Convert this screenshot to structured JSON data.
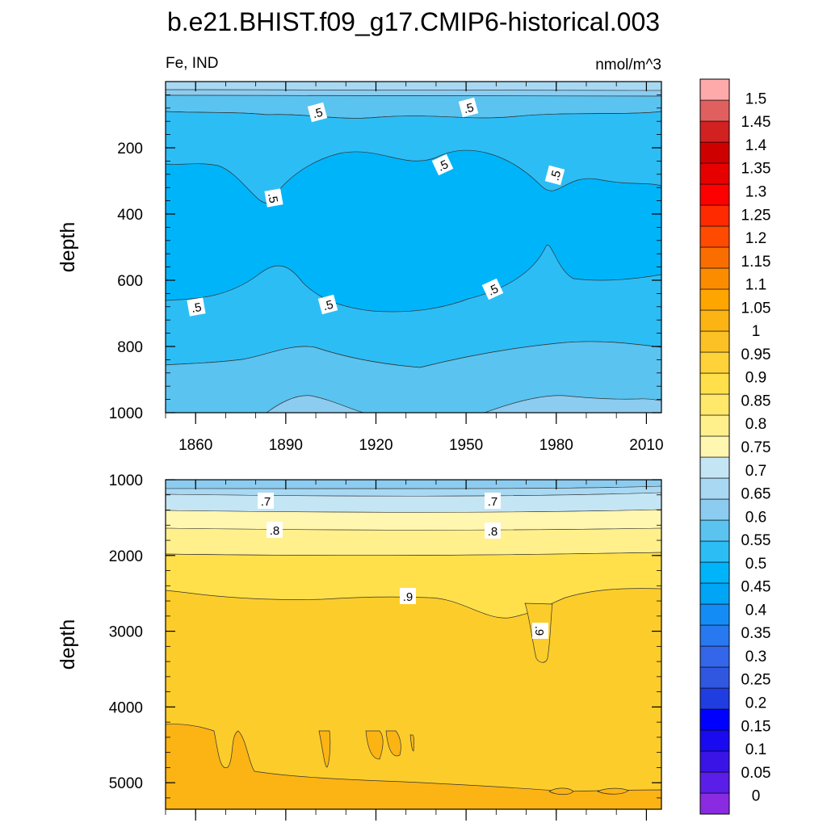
{
  "chart_data": {
    "type": "contour",
    "title": "b.e21.BHIST.f09_g17.CMIP6-historical.003",
    "variable_label": "Fe, IND",
    "units_label": "nmol/m^3",
    "colorbar": {
      "levels": [
        0,
        0.05,
        0.1,
        0.15,
        0.2,
        0.25,
        0.3,
        0.35,
        0.4,
        0.45,
        0.5,
        0.55,
        0.6,
        0.65,
        0.7,
        0.75,
        0.8,
        0.85,
        0.9,
        0.95,
        1,
        1.05,
        1.1,
        1.15,
        1.2,
        1.25,
        1.3,
        1.35,
        1.4,
        1.45,
        1.5
      ],
      "labels": [
        "0",
        "0.05",
        "0.1",
        "0.15",
        "0.2",
        "0.25",
        "0.3",
        "0.35",
        "0.4",
        "0.45",
        "0.5",
        "0.55",
        "0.6",
        "0.65",
        "0.7",
        "0.75",
        "0.8",
        "0.85",
        "0.9",
        "0.95",
        "1",
        "1.05",
        "1.1",
        "1.15",
        "1.2",
        "1.25",
        "1.3",
        "1.35",
        "1.4",
        "1.45",
        "1.5"
      ],
      "colors": [
        "#8a2be2",
        "#5a1ee8",
        "#3a14e6",
        "#1a0af0",
        "#0000ff",
        "#1f3de0",
        "#2f57e0",
        "#3366e8",
        "#2878f0",
        "#148cf5",
        "#00a5f5",
        "#00b4fa",
        "#2dbdf5",
        "#5ac3f0",
        "#8cccf0",
        "#a9d8f2",
        "#c4e5f4",
        "#fff6b0",
        "#fff08c",
        "#ffe86a",
        "#ffe04a",
        "#ffd23a",
        "#fcc125",
        "#fbb414",
        "#ffa500",
        "#fb8c00",
        "#fa6e00",
        "#ff4b00",
        "#ff2a00",
        "#ff0000",
        "#e60000",
        "#cf0000",
        "#d22121",
        "#e06060",
        "#ffaaaa"
      ]
    },
    "panels": [
      {
        "name": "upper",
        "ylabel": "depth",
        "xlabel": "",
        "xlim": [
          1850,
          2015
        ],
        "ylim": [
          1000,
          0
        ],
        "yticks": [
          200,
          400,
          600,
          800,
          1000
        ],
        "ytick_labels": [
          "200",
          "400",
          "600",
          "800",
          "1000"
        ],
        "xticks": [
          1860,
          1890,
          1920,
          1950,
          1980,
          2010
        ],
        "xtick_labels": [
          "1860",
          "1890",
          "1920",
          "1950",
          "1980",
          "2010"
        ],
        "contour_labels": [
          {
            "text": ".5",
            "x": 1883,
            "y": 90
          },
          {
            "text": ".5",
            "x": 1950,
            "y": 80
          },
          {
            "text": ".5",
            "x": 1943,
            "y": 250
          },
          {
            "text": ".5",
            "x": 1978,
            "y": 275
          },
          {
            "text": ".5",
            "x": 1888,
            "y": 360
          },
          {
            "text": ".5",
            "x": 1860,
            "y": 680
          },
          {
            "text": ".5",
            "x": 1903,
            "y": 665
          },
          {
            "text": ".5",
            "x": 1960,
            "y": 620
          }
        ],
        "regions": [
          {
            "value_range": "0.65-0.7",
            "description": "surface layer above ~40 m",
            "depth_top": 0,
            "depth_bottom": 42
          },
          {
            "value_range": "0.5-0.55",
            "description": "near-surface band",
            "depth_top": 42,
            "depth_bottom": 70
          },
          {
            "value_range": "0.55-0.6",
            "description": "upper band",
            "depth_top": 70,
            "depth_bottom": 225
          },
          {
            "value_range": "0.45-0.5",
            "description": "minimum core",
            "depth_top": 225,
            "depth_bottom": 660
          },
          {
            "value_range": "0.5-0.55",
            "description": "lower band",
            "depth_top": 660,
            "depth_bottom": 855
          },
          {
            "value_range": "0.55-0.6",
            "description": "deep band",
            "depth_top": 855,
            "depth_bottom": 975
          },
          {
            "value_range": "0.6-0.65",
            "description": "bottom patches",
            "depth_top": 975,
            "depth_bottom": 1000
          }
        ]
      },
      {
        "name": "lower",
        "ylabel": "depth",
        "xlabel": "",
        "xlim": [
          1850,
          2015
        ],
        "ylim": [
          5350,
          1000
        ],
        "yticks": [
          1000,
          2000,
          3000,
          4000,
          5000
        ],
        "ytick_labels": [
          "1000",
          "2000",
          "3000",
          "4000",
          "5000"
        ],
        "xticks": [
          1860,
          1890,
          1920,
          1950,
          1980,
          2010
        ],
        "xtick_labels": [
          "",
          "",
          "",
          "",
          "",
          ""
        ],
        "contour_labels": [
          {
            "text": ".7",
            "x": 1883,
            "y": 1260
          },
          {
            "text": ".7",
            "x": 1958,
            "y": 1260
          },
          {
            "text": ".8",
            "x": 1886,
            "y": 1690
          },
          {
            "text": ".8",
            "x": 1958,
            "y": 1700
          },
          {
            "text": ".9",
            "x": 1927,
            "y": 2570
          },
          {
            "text": ".9",
            "x": 1974,
            "y": 3000
          }
        ],
        "regions": [
          {
            "value_range": "0.6-0.65",
            "description": "top layer",
            "depth_top": 1000,
            "depth_bottom": 1120
          },
          {
            "value_range": "0.65-0.7",
            "description": "upper band",
            "depth_top": 1120,
            "depth_bottom": 1420
          },
          {
            "value_range": "0.7-0.75",
            "description": "band",
            "depth_top": 1420,
            "depth_bottom": 1640
          },
          {
            "value_range": "0.75-0.8",
            "description": "band",
            "depth_top": 1640,
            "depth_bottom": 1960
          },
          {
            "value_range": "0.8-0.85",
            "description": "band",
            "depth_top": 1960,
            "depth_bottom": 2500
          },
          {
            "value_range": "0.85-0.9",
            "description": "deep bulk",
            "depth_top": 2500,
            "depth_bottom": 4900
          },
          {
            "value_range": "0.9-0.95",
            "description": "bottom-left and deep patches",
            "depth_top": 4250,
            "depth_bottom": 5350
          }
        ]
      }
    ]
  }
}
